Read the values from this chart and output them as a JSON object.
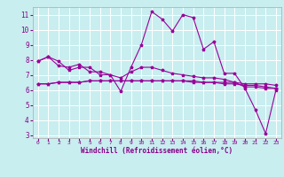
{
  "xlabel": "Windchill (Refroidissement éolien,°C)",
  "background_color": "#c8eef0",
  "grid_color": "#ffffff",
  "line_color": "#990099",
  "x_values": [
    0,
    1,
    2,
    3,
    4,
    5,
    6,
    7,
    8,
    9,
    10,
    11,
    12,
    13,
    14,
    15,
    16,
    17,
    18,
    19,
    20,
    21,
    22,
    23
  ],
  "series": [
    [
      7.9,
      8.2,
      7.9,
      7.3,
      7.5,
      7.5,
      7.0,
      7.0,
      5.9,
      7.5,
      9.0,
      11.2,
      10.7,
      9.9,
      11.0,
      10.8,
      8.7,
      9.2,
      7.1,
      7.1,
      6.1,
      4.7,
      3.1,
      6.0
    ],
    [
      7.9,
      8.2,
      7.6,
      7.5,
      7.7,
      7.2,
      7.2,
      7.0,
      6.8,
      7.2,
      7.5,
      7.5,
      7.3,
      7.1,
      7.0,
      6.9,
      6.8,
      6.8,
      6.7,
      6.5,
      6.2,
      6.2,
      6.1,
      6.1
    ],
    [
      6.4,
      6.4,
      6.5,
      6.5,
      6.5,
      6.6,
      6.6,
      6.6,
      6.6,
      6.6,
      6.6,
      6.6,
      6.6,
      6.6,
      6.6,
      6.6,
      6.5,
      6.5,
      6.5,
      6.5,
      6.4,
      6.4,
      6.4,
      6.3
    ],
    [
      6.4,
      6.4,
      6.5,
      6.5,
      6.5,
      6.6,
      6.6,
      6.6,
      6.6,
      6.6,
      6.6,
      6.6,
      6.6,
      6.6,
      6.6,
      6.5,
      6.5,
      6.5,
      6.4,
      6.4,
      6.3,
      6.3,
      6.2,
      6.1
    ]
  ],
  "ylim": [
    2.8,
    11.5
  ],
  "xlim": [
    -0.5,
    23.5
  ],
  "yticks": [
    3,
    4,
    5,
    6,
    7,
    8,
    9,
    10,
    11
  ],
  "xticks": [
    0,
    1,
    2,
    3,
    4,
    5,
    6,
    7,
    8,
    9,
    10,
    11,
    12,
    13,
    14,
    15,
    16,
    17,
    18,
    19,
    20,
    21,
    22,
    23
  ],
  "tick_color": "#880088",
  "xlabel_color": "#880088",
  "xlabel_fontsize": 5.5,
  "ytick_fontsize": 5.5,
  "xtick_fontsize": 4.5
}
